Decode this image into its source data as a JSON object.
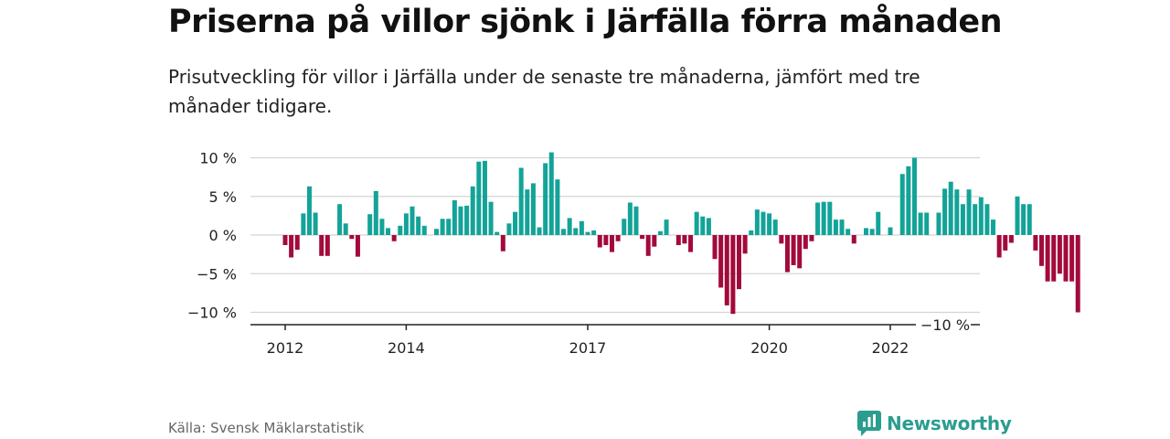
{
  "title": "Priserna på villor sjönk i Järfälla förra månaden",
  "subtitle": "Prisutveckling för villor i Järfälla under de senaste tre månaderna, jämfört med tre månader tidigare.",
  "source": "Källa: Svensk Mäklarstatistik",
  "brand": "Newsworthy",
  "colors": {
    "positive": "#13a398",
    "negative": "#a30a3c",
    "grid": "#d4d4d4",
    "axis": "#222222",
    "brand": "#2a9d8f"
  },
  "chart_data": {
    "type": "bar",
    "ylim": [
      -11,
      11.5
    ],
    "yticks": [
      10,
      5,
      0,
      -5,
      -10
    ],
    "ytick_labels": [
      "10 %",
      "5 %",
      "0 %",
      "−5 %",
      "−10 %"
    ],
    "xticks": [
      {
        "index": 0,
        "label": "2012"
      },
      {
        "index": 20,
        "label": "2014"
      },
      {
        "index": 50,
        "label": "2017"
      },
      {
        "index": 80,
        "label": "2020"
      },
      {
        "index": 100,
        "label": "2022"
      }
    ],
    "last_label": "−10 %",
    "values": [
      -1.3,
      -2.9,
      -1.9,
      2.8,
      6.3,
      2.9,
      -2.7,
      -2.7,
      0,
      4,
      1.5,
      -0.5,
      -2.8,
      0,
      2.7,
      5.7,
      2.1,
      0.9,
      -0.8,
      1.2,
      2.8,
      3.7,
      2.4,
      1.2,
      0,
      0.8,
      2.1,
      2.1,
      4.5,
      3.7,
      3.8,
      6.3,
      9.5,
      9.6,
      4.3,
      0.4,
      -2.1,
      1.5,
      3,
      8.7,
      5.9,
      6.7,
      1,
      9.3,
      10.7,
      7.2,
      0.8,
      2.2,
      0.9,
      1.8,
      0.4,
      0.6,
      -1.6,
      -1.3,
      -2.2,
      -0.8,
      2.1,
      4.2,
      3.7,
      -0.5,
      -2.7,
      -1.5,
      0.5,
      2,
      0,
      -1.3,
      -1.1,
      -2.2,
      3,
      2.4,
      2.2,
      -3.1,
      -6.8,
      -9.1,
      -10.2,
      -7,
      -2.4,
      0.6,
      3.3,
      3,
      2.8,
      2,
      -1.1,
      -4.8,
      -3.9,
      -4.3,
      -1.8,
      -0.8,
      4.2,
      4.3,
      4.3,
      2,
      2,
      0.8,
      -1.1,
      0,
      0.9,
      0.8,
      3,
      0,
      1,
      0,
      7.9,
      8.9,
      10,
      2.9,
      2.9,
      0,
      2.9,
      6,
      6.9,
      5.9,
      4,
      5.9,
      4,
      4.9,
      4,
      2,
      -2.9,
      -2,
      -1,
      5,
      4,
      4,
      -2,
      -4,
      -6,
      -6,
      -5,
      -6,
      -6,
      -10
    ]
  }
}
